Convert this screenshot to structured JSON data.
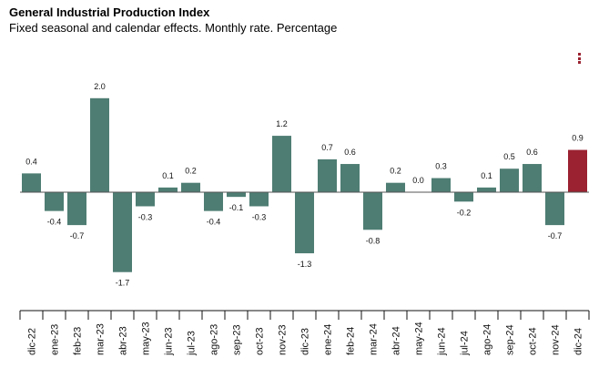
{
  "header": {
    "title": "General Industrial Production Index",
    "subtitle": "Fixed seasonal and calendar effects. Monthly rate. Percentage"
  },
  "menu": {
    "icon": "vertical-dots-icon"
  },
  "colors": {
    "bar": "#4e7d73",
    "highlight": "#9b2231",
    "axis": "#111111"
  },
  "chart_data": {
    "type": "bar",
    "title": "General Industrial Production Index",
    "subtitle": "Fixed seasonal and calendar effects. Monthly rate. Percentage",
    "xlabel": "",
    "ylabel": "",
    "categories": [
      "dic-22",
      "ene-23",
      "feb-23",
      "mar-23",
      "abr-23",
      "may-23",
      "jun-23",
      "jul-23",
      "ago-23",
      "sep-23",
      "oct-23",
      "nov-23",
      "dic-23",
      "ene-24",
      "feb-24",
      "mar-24",
      "abr-24",
      "may-24",
      "jun-24",
      "jul-24",
      "ago-24",
      "sep-24",
      "oct-24",
      "nov-24",
      "dic-24"
    ],
    "values": [
      0.4,
      -0.4,
      -0.7,
      2.0,
      -1.7,
      -0.3,
      0.1,
      0.2,
      -0.4,
      -0.1,
      -0.3,
      1.2,
      -1.3,
      0.7,
      0.6,
      -0.8,
      0.2,
      0.0,
      0.3,
      -0.2,
      0.1,
      0.5,
      0.6,
      -0.7,
      0.9
    ],
    "value_labels": [
      "0.4",
      "-0.4",
      "-0.7",
      "2.0",
      "-1.7",
      "-0.3",
      "0.1",
      "0.2",
      "-0.4",
      "-0.1",
      "-0.3",
      "1.2",
      "-1.3",
      "0.7",
      "0.6",
      "-0.8",
      "0.2",
      "0.0",
      "0.3",
      "-0.2",
      "0.1",
      "0.5",
      "0.6",
      "-0.7",
      "0.9"
    ],
    "highlight_index": 24,
    "ylim": [
      -1.7,
      2.0
    ],
    "grid": false,
    "legend": "none"
  }
}
